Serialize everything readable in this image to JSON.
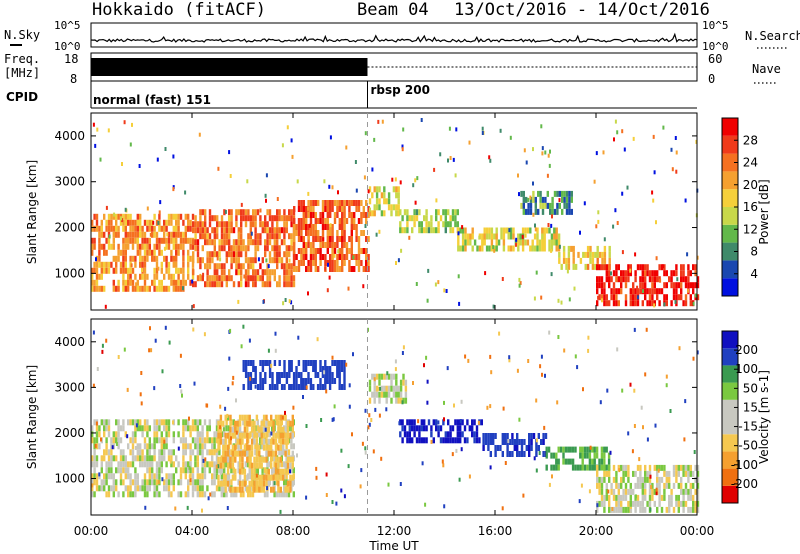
{
  "header": {
    "station": "Hokkaido (fitACF)",
    "beam": "Beam 04",
    "date_range": "13/Oct/2016 - 14/Oct/2016"
  },
  "noise_panel": {
    "left_label": "N.Sky",
    "right_label": "N.Search",
    "tick_top": "10^5",
    "tick_bottom": "10^0"
  },
  "freq_panel": {
    "left_label_line1": "Freq.",
    "left_label_line2": "[MHz]",
    "left_tick_top": "18",
    "left_tick_bottom": "8",
    "right_label": "Nave",
    "right_tick_top": "60",
    "right_tick_bottom": "0",
    "freq_value": 11,
    "freq_switch_hour": 10.95
  },
  "cpid_panel": {
    "label": "CPID",
    "segments": [
      {
        "name": "normal (fast) 151",
        "start": 0
      },
      {
        "name": "rbsp 200",
        "start": 10.95
      }
    ]
  },
  "colors": {
    "power_scale": [
      "#0010e0",
      "#1a47b0",
      "#3f8a6a",
      "#62b84a",
      "#c8d84a",
      "#f5cf3a",
      "#f5a030",
      "#f57020",
      "#f03a1a",
      "#f00000"
    ],
    "velocity_scale": [
      "#e00000",
      "#f07010",
      "#f5a030",
      "#f5c850",
      "#c8c8c0",
      "#c8c8c0",
      "#7ac840",
      "#3a9a50",
      "#2040c0",
      "#1010c0"
    ],
    "ground_scatter": "#c0c0b8"
  },
  "chart_data": [
    {
      "type": "heatmap",
      "name": "power",
      "ylabel": "Slant Range [km]",
      "yticks": [
        "1000",
        "2000",
        "3000",
        "4000"
      ],
      "ylim": [
        200,
        4500
      ],
      "xlim": [
        0,
        24
      ],
      "colorbar_label": "Power [dB]",
      "colorbar_ticks": [
        "4",
        "8",
        "12",
        "16",
        "20",
        "24",
        "28"
      ],
      "colorbar_range": [
        0,
        32
      ],
      "echo_bands": [
        {
          "t0": 0.0,
          "t1": 4.0,
          "r0": 700,
          "r1": 2300,
          "value": 22
        },
        {
          "t0": 4.0,
          "t1": 8.0,
          "r0": 800,
          "r1": 2400,
          "value": 24
        },
        {
          "t0": 8.0,
          "t1": 10.95,
          "r0": 1100,
          "r1": 2600,
          "value": 25
        },
        {
          "t0": 11.0,
          "t1": 12.2,
          "r0": 2300,
          "r1": 2900,
          "value": 16
        },
        {
          "t0": 12.2,
          "t1": 14.5,
          "r0": 1900,
          "r1": 2400,
          "value": 14
        },
        {
          "t0": 14.5,
          "t1": 18.5,
          "r0": 1500,
          "r1": 2000,
          "value": 16
        },
        {
          "t0": 17.0,
          "t1": 19.0,
          "r0": 2300,
          "r1": 2800,
          "value": 9
        },
        {
          "t0": 18.5,
          "t1": 20.5,
          "r0": 1100,
          "r1": 1600,
          "value": 18
        },
        {
          "t0": 20.0,
          "t1": 24.0,
          "r0": 300,
          "r1": 1200,
          "value": 30
        }
      ]
    },
    {
      "type": "heatmap",
      "name": "velocity",
      "ylabel": "Slant Range [km]",
      "yticks": [
        "1000",
        "2000",
        "3000",
        "4000"
      ],
      "ylim": [
        200,
        4500
      ],
      "xlim": [
        0,
        24
      ],
      "xticks": [
        "00:00",
        "04:00",
        "08:00",
        "12:00",
        "16:00",
        "20:00",
        "00:00"
      ],
      "xlabel": "Time UT",
      "colorbar_label": "Velocity [m s-1]",
      "colorbar_ticks": [
        "-200",
        "-100",
        "-50",
        "-15",
        "15",
        "50",
        "100",
        "200"
      ],
      "echo_bands": [
        {
          "t0": 0.0,
          "t1": 8.0,
          "r0": 700,
          "r1": 2300,
          "value": 0
        },
        {
          "t0": 5.0,
          "t1": 8.0,
          "r0": 800,
          "r1": 2400,
          "value": -40
        },
        {
          "t0": 6.0,
          "t1": 10.0,
          "r0": 3000,
          "r1": 3600,
          "value": 150
        },
        {
          "t0": 11.0,
          "t1": 12.5,
          "r0": 2700,
          "r1": 3300,
          "value": 5
        },
        {
          "t0": 12.2,
          "t1": 15.5,
          "r0": 1900,
          "r1": 2300,
          "value": 220
        },
        {
          "t0": 15.5,
          "t1": 18.0,
          "r0": 1600,
          "r1": 2000,
          "value": 180
        },
        {
          "t0": 18.0,
          "t1": 20.5,
          "r0": 1200,
          "r1": 1700,
          "value": 60
        },
        {
          "t0": 20.0,
          "t1": 24.0,
          "r0": 300,
          "r1": 1300,
          "value": 0
        }
      ]
    }
  ]
}
